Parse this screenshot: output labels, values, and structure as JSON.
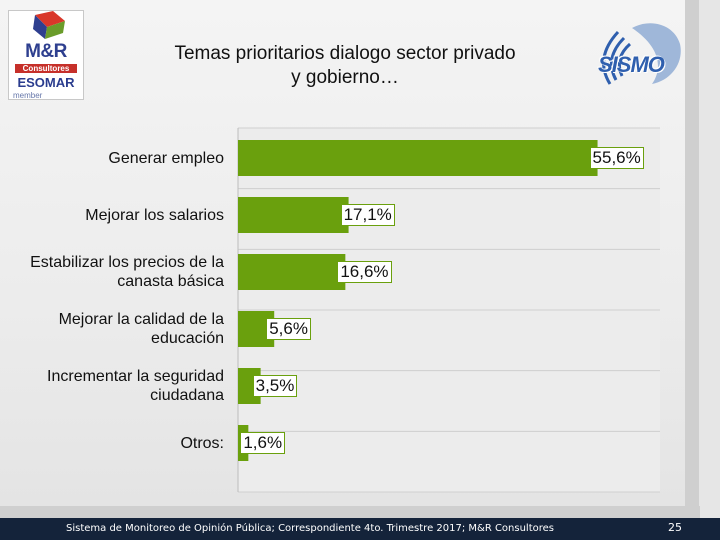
{
  "title_line1": "Temas prioritarios dialogo sector privado",
  "title_line2": "y gobierno…",
  "logo_left": {
    "brand": "M&R",
    "sub": "Consultores",
    "esomar": "ESOMAR",
    "member": "member"
  },
  "logo_right": {
    "brand": "SISMO"
  },
  "footer": {
    "text": "Sistema de Monitoreo de Opinión Pública; Correspondiente 4to. Trimestre 2017; M&R Consultores",
    "page": "25"
  },
  "colors": {
    "bar": "#6aa00d",
    "footer": "#14233a"
  },
  "chart_data": {
    "type": "bar",
    "orientation": "horizontal",
    "title": "Temas prioritarios dialogo sector privado y gobierno…",
    "categories": [
      [
        "Generar empleo"
      ],
      [
        "Mejorar los salarios"
      ],
      [
        "Estabilizar los precios de la",
        "canasta básica"
      ],
      [
        "Mejorar la calidad de la",
        "educación"
      ],
      [
        "Incrementar la seguridad",
        "ciudadana"
      ],
      [
        "Otros:"
      ]
    ],
    "values": [
      55.6,
      17.1,
      16.6,
      5.6,
      3.5,
      1.6
    ],
    "value_labels": [
      "55,6%",
      "17,1%",
      "16,6%",
      "5,6%",
      "3,5%",
      "1,6%"
    ],
    "xlim": [
      0,
      60
    ],
    "grid": true,
    "xlabel": "",
    "ylabel": ""
  }
}
